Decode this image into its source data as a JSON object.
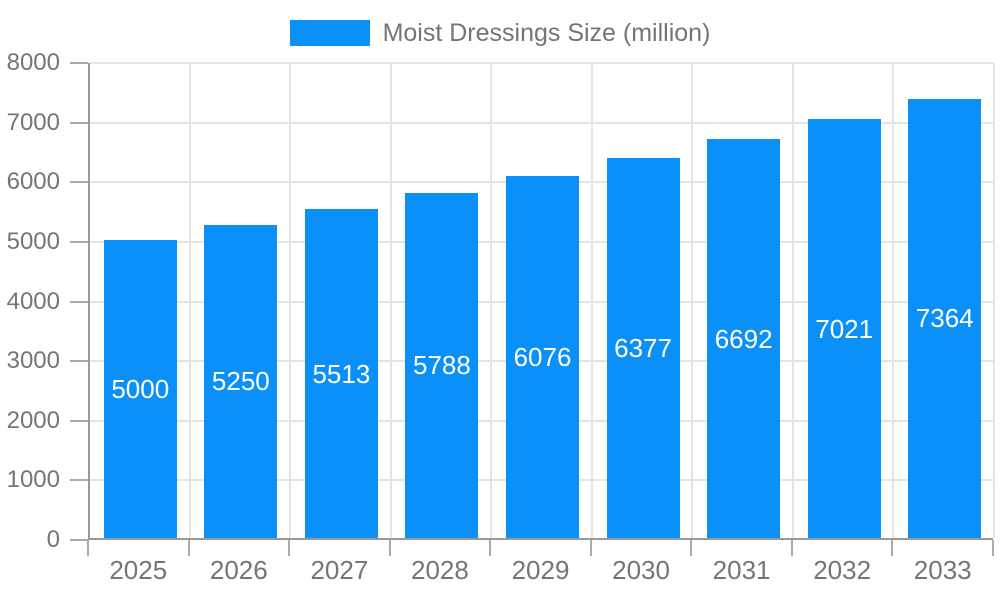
{
  "chart_data": {
    "type": "bar",
    "title": "Moist Dressings Size (million)",
    "legend_entries": [
      "Moist Dressings Size (million)"
    ],
    "legend_position": "top-center",
    "categories": [
      "2025",
      "2026",
      "2027",
      "2028",
      "2029",
      "2030",
      "2031",
      "2032",
      "2033"
    ],
    "values": [
      5000,
      5250,
      5513,
      5788,
      6076,
      6377,
      6692,
      7021,
      7364
    ],
    "xlabel": "",
    "ylabel": "",
    "ylim": [
      0,
      8000
    ],
    "ytick_step": 1000,
    "yticks": [
      0,
      1000,
      2000,
      3000,
      4000,
      5000,
      6000,
      7000,
      8000
    ],
    "grid": true,
    "bar_labels_shown": true,
    "colors": {
      "bar": "#0A90F8",
      "axis": "#999999",
      "grid": "#E4E4E4",
      "tick_label": "#757575",
      "bar_label": "#FFFFFF",
      "background": "#FFFFFF"
    }
  }
}
